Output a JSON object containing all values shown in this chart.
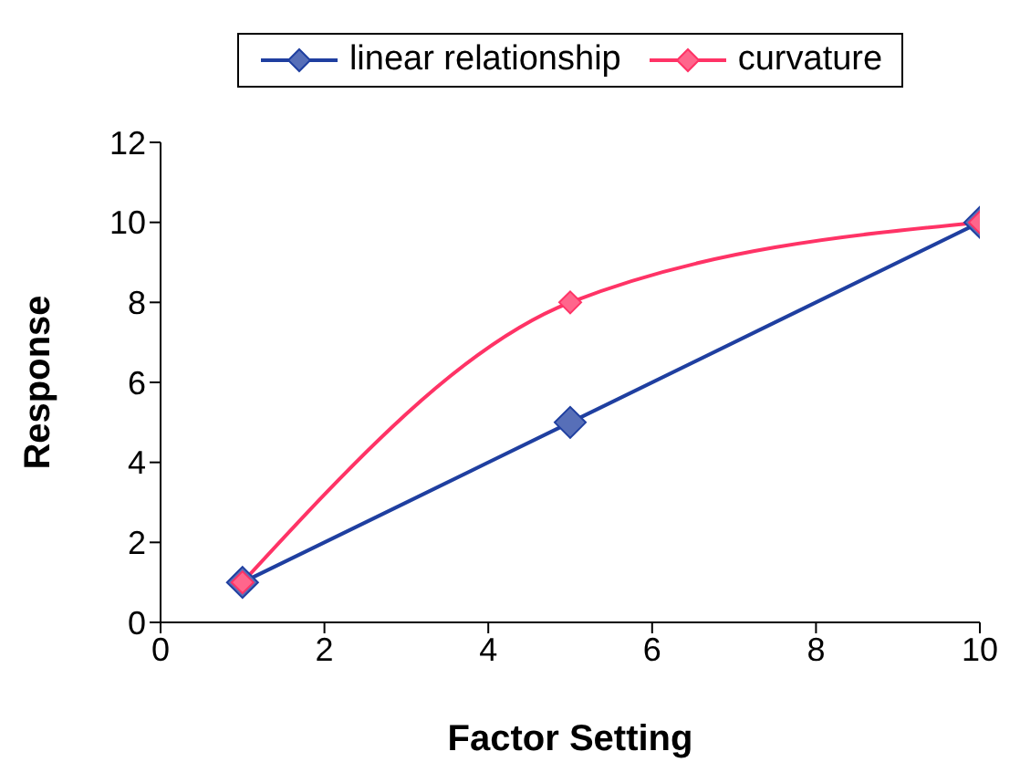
{
  "chart_data": {
    "type": "line",
    "xlabel": "Factor Setting",
    "ylabel": "Response",
    "x": [
      1,
      5,
      10
    ],
    "series": [
      {
        "name": "linear relationship",
        "color": "#1f3fa0",
        "values": [
          1,
          5,
          10
        ]
      },
      {
        "name": "curvature",
        "color": "#ff3366",
        "values": [
          1,
          8,
          10
        ]
      }
    ],
    "xlim": [
      0,
      10
    ],
    "xticks": [
      0,
      2,
      4,
      6,
      8,
      10
    ],
    "ylim": [
      0,
      12
    ],
    "yticks": [
      0,
      2,
      4,
      6,
      8,
      10,
      12
    ],
    "grid": false,
    "legend": "top",
    "marker": "diamond",
    "line_style": "solid"
  }
}
